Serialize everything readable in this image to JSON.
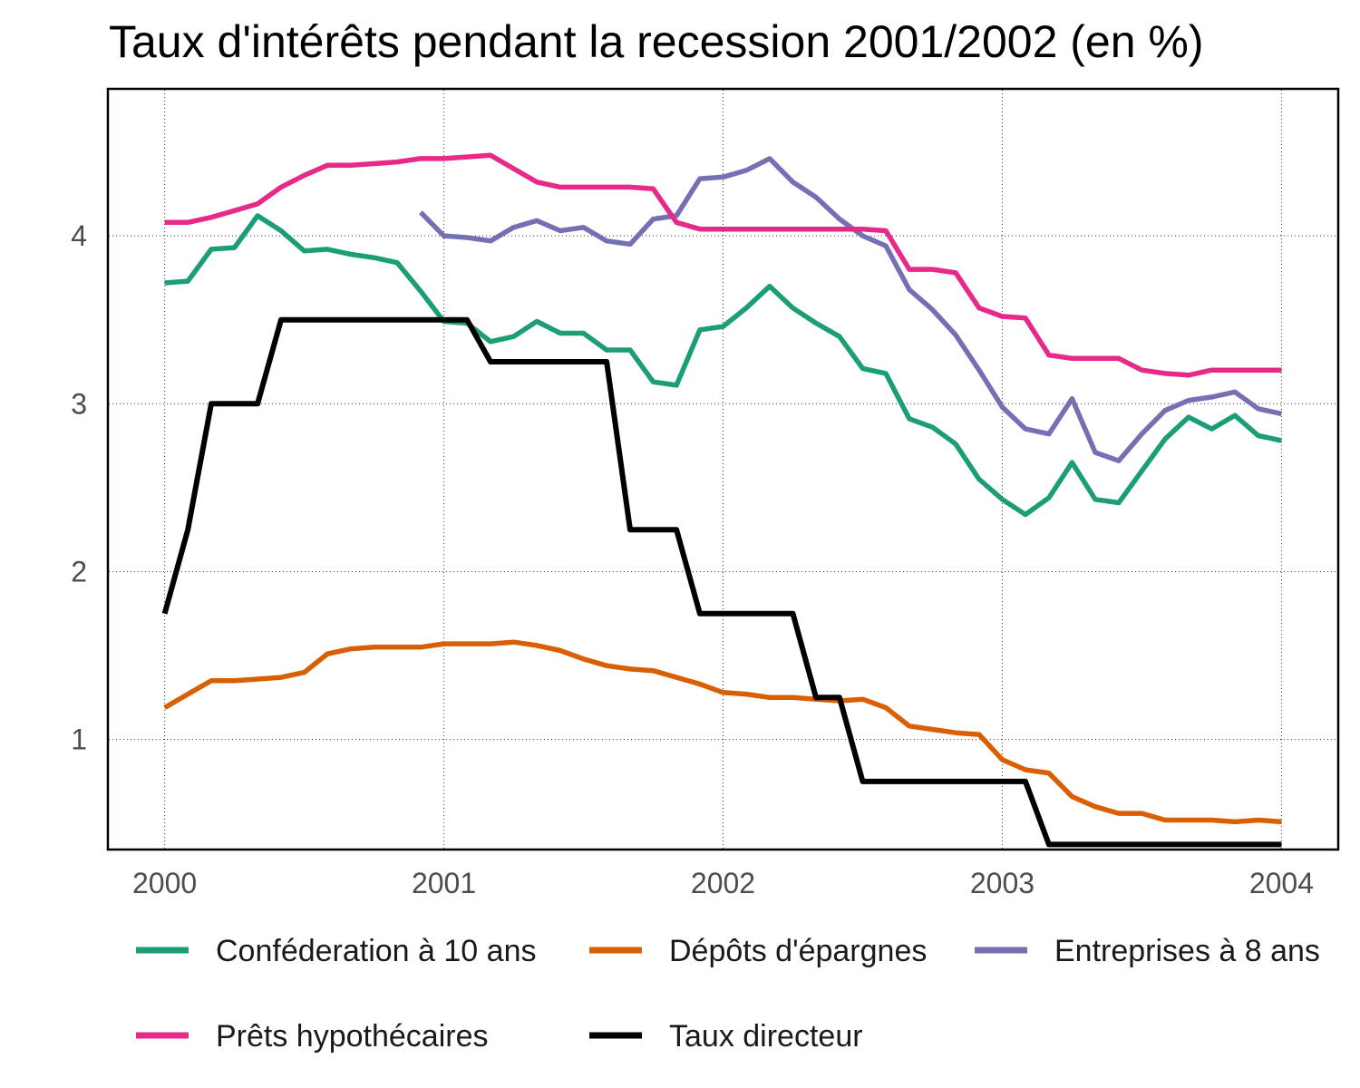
{
  "chart_data": {
    "type": "line",
    "title": "Taux d'intérêts pendant la recession 2001/2002 (en %)",
    "xlabel": "",
    "ylabel": "",
    "xlim": [
      1999.8,
      2004.2
    ],
    "ylim": [
      0.35,
      4.87
    ],
    "x_ticks": [
      2000,
      2001,
      2002,
      2003,
      2004
    ],
    "x_tick_labels": [
      "2000",
      "2001",
      "2002",
      "2003",
      "2004"
    ],
    "y_ticks": [
      1,
      2,
      3,
      4
    ],
    "y_tick_labels": [
      "1",
      "2",
      "3",
      "4"
    ],
    "grid": true,
    "legend_position": "bottom",
    "series": [
      {
        "name": "Conféderation à 10 ans",
        "color": "#1b9e77",
        "points": [
          [
            2000.0,
            3.72
          ],
          [
            2000.083,
            3.73
          ],
          [
            2000.167,
            3.92
          ],
          [
            2000.25,
            3.93
          ],
          [
            2000.333,
            4.12
          ],
          [
            2000.417,
            4.03
          ],
          [
            2000.5,
            3.91
          ],
          [
            2000.583,
            3.92
          ],
          [
            2000.667,
            3.89
          ],
          [
            2000.75,
            3.87
          ],
          [
            2000.833,
            3.84
          ],
          [
            2000.917,
            3.67
          ],
          [
            2001.0,
            3.49
          ],
          [
            2001.083,
            3.48
          ],
          [
            2001.167,
            3.37
          ],
          [
            2001.25,
            3.4
          ],
          [
            2001.333,
            3.49
          ],
          [
            2001.417,
            3.42
          ],
          [
            2001.5,
            3.42
          ],
          [
            2001.583,
            3.32
          ],
          [
            2001.667,
            3.32
          ],
          [
            2001.75,
            3.13
          ],
          [
            2001.833,
            3.11
          ],
          [
            2001.917,
            3.44
          ],
          [
            2002.0,
            3.46
          ],
          [
            2002.083,
            3.57
          ],
          [
            2002.167,
            3.7
          ],
          [
            2002.25,
            3.57
          ],
          [
            2002.333,
            3.48
          ],
          [
            2002.417,
            3.4
          ],
          [
            2002.5,
            3.21
          ],
          [
            2002.583,
            3.18
          ],
          [
            2002.667,
            2.91
          ],
          [
            2002.75,
            2.86
          ],
          [
            2002.833,
            2.76
          ],
          [
            2002.917,
            2.55
          ],
          [
            2003.0,
            2.43
          ],
          [
            2003.083,
            2.34
          ],
          [
            2003.167,
            2.44
          ],
          [
            2003.25,
            2.65
          ],
          [
            2003.333,
            2.43
          ],
          [
            2003.417,
            2.41
          ],
          [
            2003.5,
            2.6
          ],
          [
            2003.583,
            2.79
          ],
          [
            2003.667,
            2.92
          ],
          [
            2003.75,
            2.85
          ],
          [
            2003.833,
            2.93
          ],
          [
            2003.917,
            2.81
          ],
          [
            2004.0,
            2.78
          ]
        ]
      },
      {
        "name": "Dépôts d'épargnes",
        "color": "#d95f02",
        "points": [
          [
            2000.0,
            1.19
          ],
          [
            2000.083,
            1.27
          ],
          [
            2000.167,
            1.35
          ],
          [
            2000.25,
            1.35
          ],
          [
            2000.333,
            1.36
          ],
          [
            2000.417,
            1.37
          ],
          [
            2000.5,
            1.4
          ],
          [
            2000.583,
            1.51
          ],
          [
            2000.667,
            1.54
          ],
          [
            2000.75,
            1.55
          ],
          [
            2000.833,
            1.55
          ],
          [
            2000.917,
            1.55
          ],
          [
            2001.0,
            1.57
          ],
          [
            2001.083,
            1.57
          ],
          [
            2001.167,
            1.57
          ],
          [
            2001.25,
            1.58
          ],
          [
            2001.333,
            1.56
          ],
          [
            2001.417,
            1.53
          ],
          [
            2001.5,
            1.48
          ],
          [
            2001.583,
            1.44
          ],
          [
            2001.667,
            1.42
          ],
          [
            2001.75,
            1.41
          ],
          [
            2001.833,
            1.37
          ],
          [
            2001.917,
            1.33
          ],
          [
            2002.0,
            1.28
          ],
          [
            2002.083,
            1.27
          ],
          [
            2002.167,
            1.25
          ],
          [
            2002.25,
            1.25
          ],
          [
            2002.333,
            1.24
          ],
          [
            2002.417,
            1.23
          ],
          [
            2002.5,
            1.24
          ],
          [
            2002.583,
            1.19
          ],
          [
            2002.667,
            1.08
          ],
          [
            2002.75,
            1.06
          ],
          [
            2002.833,
            1.04
          ],
          [
            2002.917,
            1.03
          ],
          [
            2003.0,
            0.88
          ],
          [
            2003.083,
            0.82
          ],
          [
            2003.167,
            0.8
          ],
          [
            2003.25,
            0.66
          ],
          [
            2003.333,
            0.6
          ],
          [
            2003.417,
            0.56
          ],
          [
            2003.5,
            0.56
          ],
          [
            2003.583,
            0.52
          ],
          [
            2003.667,
            0.52
          ],
          [
            2003.75,
            0.52
          ],
          [
            2003.833,
            0.51
          ],
          [
            2003.917,
            0.52
          ],
          [
            2004.0,
            0.51
          ]
        ]
      },
      {
        "name": "Entreprises à 8 ans",
        "color": "#7570b3",
        "points": [
          [
            2000.917,
            4.14
          ],
          [
            2001.0,
            4.0
          ],
          [
            2001.083,
            3.99
          ],
          [
            2001.167,
            3.97
          ],
          [
            2001.25,
            4.05
          ],
          [
            2001.333,
            4.09
          ],
          [
            2001.417,
            4.03
          ],
          [
            2001.5,
            4.05
          ],
          [
            2001.583,
            3.97
          ],
          [
            2001.667,
            3.95
          ],
          [
            2001.75,
            4.1
          ],
          [
            2001.833,
            4.12
          ],
          [
            2001.917,
            4.34
          ],
          [
            2002.0,
            4.35
          ],
          [
            2002.083,
            4.39
          ],
          [
            2002.167,
            4.46
          ],
          [
            2002.25,
            4.32
          ],
          [
            2002.333,
            4.23
          ],
          [
            2002.417,
            4.1
          ],
          [
            2002.5,
            4.0
          ],
          [
            2002.583,
            3.94
          ],
          [
            2002.667,
            3.68
          ],
          [
            2002.75,
            3.56
          ],
          [
            2002.833,
            3.41
          ],
          [
            2002.917,
            3.2
          ],
          [
            2003.0,
            2.98
          ],
          [
            2003.083,
            2.85
          ],
          [
            2003.167,
            2.82
          ],
          [
            2003.25,
            3.03
          ],
          [
            2003.333,
            2.71
          ],
          [
            2003.417,
            2.66
          ],
          [
            2003.5,
            2.82
          ],
          [
            2003.583,
            2.96
          ],
          [
            2003.667,
            3.02
          ],
          [
            2003.75,
            3.04
          ],
          [
            2003.833,
            3.07
          ],
          [
            2003.917,
            2.97
          ],
          [
            2004.0,
            2.94
          ]
        ]
      },
      {
        "name": "Prêts hypothécaires",
        "color": "#e7298a",
        "points": [
          [
            2000.0,
            4.08
          ],
          [
            2000.083,
            4.08
          ],
          [
            2000.167,
            4.11
          ],
          [
            2000.25,
            4.15
          ],
          [
            2000.333,
            4.19
          ],
          [
            2000.417,
            4.29
          ],
          [
            2000.5,
            4.36
          ],
          [
            2000.583,
            4.42
          ],
          [
            2000.667,
            4.42
          ],
          [
            2000.75,
            4.43
          ],
          [
            2000.833,
            4.44
          ],
          [
            2000.917,
            4.46
          ],
          [
            2001.0,
            4.46
          ],
          [
            2001.083,
            4.47
          ],
          [
            2001.167,
            4.48
          ],
          [
            2001.25,
            4.4
          ],
          [
            2001.333,
            4.32
          ],
          [
            2001.417,
            4.29
          ],
          [
            2001.5,
            4.29
          ],
          [
            2001.583,
            4.29
          ],
          [
            2001.667,
            4.29
          ],
          [
            2001.75,
            4.28
          ],
          [
            2001.833,
            4.08
          ],
          [
            2001.917,
            4.04
          ],
          [
            2002.0,
            4.04
          ],
          [
            2002.083,
            4.04
          ],
          [
            2002.167,
            4.04
          ],
          [
            2002.25,
            4.04
          ],
          [
            2002.333,
            4.04
          ],
          [
            2002.417,
            4.04
          ],
          [
            2002.5,
            4.04
          ],
          [
            2002.583,
            4.03
          ],
          [
            2002.667,
            3.8
          ],
          [
            2002.75,
            3.8
          ],
          [
            2002.833,
            3.78
          ],
          [
            2002.917,
            3.57
          ],
          [
            2003.0,
            3.52
          ],
          [
            2003.083,
            3.51
          ],
          [
            2003.167,
            3.29
          ],
          [
            2003.25,
            3.27
          ],
          [
            2003.333,
            3.27
          ],
          [
            2003.417,
            3.27
          ],
          [
            2003.5,
            3.2
          ],
          [
            2003.583,
            3.18
          ],
          [
            2003.667,
            3.17
          ],
          [
            2003.75,
            3.2
          ],
          [
            2003.833,
            3.2
          ],
          [
            2003.917,
            3.2
          ],
          [
            2004.0,
            3.2
          ]
        ]
      },
      {
        "name": "Taux directeur",
        "color": "#000000",
        "points": [
          [
            2000.0,
            1.75
          ],
          [
            2000.083,
            2.25
          ],
          [
            2000.167,
            3.0
          ],
          [
            2000.25,
            3.0
          ],
          [
            2000.333,
            3.0
          ],
          [
            2000.417,
            3.5
          ],
          [
            2000.5,
            3.5
          ],
          [
            2000.583,
            3.5
          ],
          [
            2000.667,
            3.5
          ],
          [
            2000.75,
            3.5
          ],
          [
            2000.833,
            3.5
          ],
          [
            2000.917,
            3.5
          ],
          [
            2001.0,
            3.5
          ],
          [
            2001.083,
            3.5
          ],
          [
            2001.167,
            3.25
          ],
          [
            2001.25,
            3.25
          ],
          [
            2001.333,
            3.25
          ],
          [
            2001.417,
            3.25
          ],
          [
            2001.5,
            3.25
          ],
          [
            2001.583,
            3.25
          ],
          [
            2001.667,
            2.25
          ],
          [
            2001.75,
            2.25
          ],
          [
            2001.833,
            2.25
          ],
          [
            2001.917,
            1.75
          ],
          [
            2002.0,
            1.75
          ],
          [
            2002.083,
            1.75
          ],
          [
            2002.167,
            1.75
          ],
          [
            2002.25,
            1.75
          ],
          [
            2002.333,
            1.25
          ],
          [
            2002.417,
            1.25
          ],
          [
            2002.5,
            0.75
          ],
          [
            2002.583,
            0.75
          ],
          [
            2002.667,
            0.75
          ],
          [
            2002.75,
            0.75
          ],
          [
            2002.833,
            0.75
          ],
          [
            2002.917,
            0.75
          ],
          [
            2003.0,
            0.75
          ],
          [
            2003.083,
            0.75
          ],
          [
            2003.167,
            0.375
          ],
          [
            2003.25,
            0.375
          ],
          [
            2003.333,
            0.375
          ],
          [
            2003.417,
            0.375
          ],
          [
            2003.5,
            0.375
          ],
          [
            2003.583,
            0.375
          ],
          [
            2003.667,
            0.375
          ],
          [
            2003.75,
            0.375
          ],
          [
            2003.833,
            0.375
          ],
          [
            2003.917,
            0.375
          ],
          [
            2004.0,
            0.375
          ]
        ]
      }
    ]
  }
}
